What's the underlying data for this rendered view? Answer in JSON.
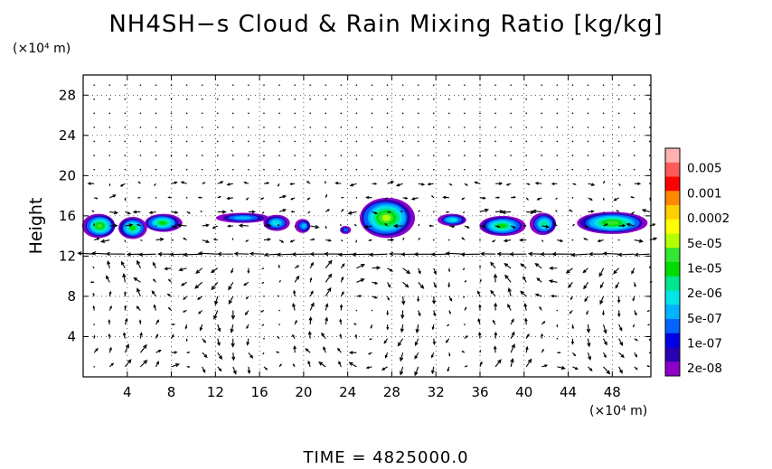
{
  "chart_data": {
    "type": "heatmap",
    "title": "NH4SH−s Cloud & Rain Mixing Ratio [kg/kg]",
    "xlabel": "",
    "ylabel": "Height",
    "x_unit": "(×10⁴ m)",
    "y_unit": "(×10⁴ m)",
    "footer": "TIME  =  4825000.0",
    "xlim": [
      0,
      51.5
    ],
    "ylim": [
      0,
      30
    ],
    "x_ticks": [
      4,
      8,
      12,
      16,
      20,
      24,
      28,
      32,
      36,
      40,
      44,
      48
    ],
    "y_ticks": [
      4,
      8,
      12,
      16,
      20,
      24,
      28
    ],
    "colorbar": {
      "labels": [
        "0.005",
        "0.001",
        "0.0002",
        "5e-05",
        "1e-05",
        "2e-06",
        "5e-07",
        "1e-07",
        "2e-08"
      ],
      "colors": [
        "#ffb2b2",
        "#ff5a5a",
        "#ff0000",
        "#ff8a00",
        "#ffd000",
        "#ffff00",
        "#b4ff00",
        "#32e632",
        "#00dc00",
        "#00e68c",
        "#00e6e6",
        "#00b4ff",
        "#0064ff",
        "#0000e6",
        "#2800b4",
        "#8c00c8"
      ]
    },
    "clouds": [
      {
        "x": 1.5,
        "y": 15.0,
        "w": 3.0,
        "h": 2.4,
        "level": 8
      },
      {
        "x": 4.5,
        "y": 14.8,
        "w": 2.6,
        "h": 2.2,
        "level": 7
      },
      {
        "x": 7.2,
        "y": 15.3,
        "w": 3.4,
        "h": 1.8,
        "level": 7
      },
      {
        "x": 14.5,
        "y": 15.8,
        "w": 4.8,
        "h": 1.0,
        "level": 4
      },
      {
        "x": 17.5,
        "y": 15.3,
        "w": 2.4,
        "h": 1.6,
        "level": 5
      },
      {
        "x": 20.0,
        "y": 15.0,
        "w": 1.4,
        "h": 1.4,
        "level": 4
      },
      {
        "x": 23.8,
        "y": 14.6,
        "w": 1.0,
        "h": 0.8,
        "level": 3
      },
      {
        "x": 27.5,
        "y": 15.8,
        "w": 5.0,
        "h": 4.0,
        "level": 9
      },
      {
        "x": 33.5,
        "y": 15.6,
        "w": 2.6,
        "h": 1.2,
        "level": 5
      },
      {
        "x": 38.0,
        "y": 15.0,
        "w": 4.2,
        "h": 2.0,
        "level": 7
      },
      {
        "x": 41.8,
        "y": 15.2,
        "w": 2.4,
        "h": 2.2,
        "level": 6
      },
      {
        "x": 48.0,
        "y": 15.3,
        "w": 6.4,
        "h": 2.2,
        "level": 8
      }
    ],
    "wind_field": "quiver"
  }
}
